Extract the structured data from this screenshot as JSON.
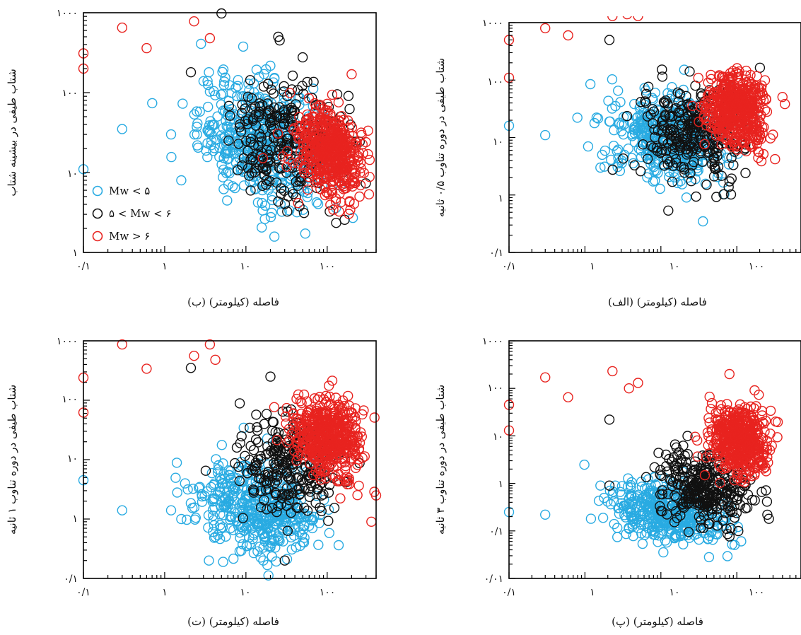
{
  "figure": {
    "legend": {
      "entries": [
        {
          "label": "Mw < ۵",
          "color": "#29abe2"
        },
        {
          "label": "۵ < Mw < ۶",
          "color": "#111111"
        },
        {
          "label": "Mw > ۶",
          "color": "#e8231f"
        }
      ]
    }
  },
  "chart_data": [
    {
      "type": "scatter",
      "id": "b",
      "caption": "(ب) فاصله (کیلومتر)",
      "ylabel": "شتاب طیفی در بیشینه شتاب",
      "xscale": "log",
      "yscale": "log",
      "xlim": [
        0.1,
        400
      ],
      "ylim": [
        1,
        1000
      ],
      "xticks": [
        "۰/۱",
        "۱",
        "۱۰",
        "۱۰۰"
      ],
      "yticks": [
        "۱",
        "۱۰",
        "۱۰۰",
        "۱۰۰۰"
      ],
      "legend_placement": "bottom-left",
      "series": [
        {
          "name": "Mw < ۵",
          "color": "#29abe2",
          "dist_center": 15,
          "dist_spread": 1.0,
          "val_center": 25,
          "val_spread": 0.9,
          "count": 450,
          "points": [
            [
              0.1,
              11
            ],
            [
              0.3,
              35
            ],
            [
              1.6,
              8
            ],
            [
              1.2,
              30
            ],
            [
              30,
              20
            ],
            [
              2.5,
              30
            ],
            [
              3.5,
              180
            ]
          ]
        },
        {
          "name": "۵ < Mw < ۶",
          "color": "#111111",
          "dist_center": 30,
          "dist_spread": 0.9,
          "val_center": 25,
          "val_spread": 0.9,
          "count": 240,
          "points": [
            [
              5,
              980
            ],
            [
              2.1,
              180
            ],
            [
              25,
              500
            ],
            [
              26,
              450
            ]
          ]
        },
        {
          "name": "Mw > ۶",
          "color": "#e8231f",
          "dist_center": 110,
          "dist_spread": 0.55,
          "val_center": 18,
          "val_spread": 0.65,
          "count": 500,
          "points": [
            [
              0.1,
              310
            ],
            [
              0.1,
              200
            ],
            [
              0.3,
              650
            ],
            [
              0.6,
              360
            ],
            [
              2.3,
              780
            ],
            [
              3.6,
              480
            ],
            [
              250,
              5
            ],
            [
              200,
              170
            ]
          ]
        }
      ]
    },
    {
      "type": "scatter",
      "id": "alef",
      "caption": "(الف) فاصله (کیلومتر)",
      "ylabel": "شتاب طیفی در دوره تناوب ۰/۵ ثانیه",
      "xscale": "log",
      "yscale": "log",
      "xlim": [
        0.1,
        700
      ],
      "ylim": [
        0.1,
        1000
      ],
      "xticks": [
        "۰/۱",
        "۱",
        "۱۰",
        "۱۰۰"
      ],
      "yticks": [
        "۰/۱",
        "۱",
        "۱۰",
        "۱۰۰",
        "۱۰۰۰"
      ],
      "series": [
        {
          "name": "Mw < ۵",
          "color": "#29abe2",
          "dist_center": 12,
          "dist_spread": 1.0,
          "val_center": 10,
          "val_spread": 0.9,
          "count": 400,
          "points": [
            [
              0.1,
              16
            ],
            [
              0.3,
              11
            ],
            [
              1.1,
              7
            ],
            [
              1.6,
              3
            ],
            [
              2.1,
              19
            ]
          ]
        },
        {
          "name": "۵ < Mw < ۶",
          "color": "#111111",
          "dist_center": 25,
          "dist_spread": 0.9,
          "val_center": 12,
          "val_spread": 1.0,
          "count": 260,
          "points": [
            [
              2.1,
              500
            ],
            [
              40,
              1.5
            ]
          ]
        },
        {
          "name": "Mw > ۶",
          "color": "#e8231f",
          "dist_center": 100,
          "dist_spread": 0.55,
          "val_center": 30,
          "val_spread": 0.75,
          "count": 520,
          "points": [
            [
              0.1,
              500
            ],
            [
              0.1,
              110
            ],
            [
              0.3,
              800
            ],
            [
              0.6,
              600
            ],
            [
              2.3,
              1300
            ],
            [
              3.6,
              1400
            ],
            [
              5,
              1300
            ]
          ]
        }
      ]
    },
    {
      "type": "scatter",
      "id": "te",
      "caption": "(ت) فاصله (کیلومتر)",
      "ylabel": "شتاب طیفی در دوره تناوب ۱ ثانیه",
      "xscale": "log",
      "yscale": "log",
      "xlim": [
        0.1,
        400
      ],
      "ylim": [
        0.1,
        1000
      ],
      "xticks": [
        "۰/۱",
        "۱",
        "۱۰",
        "۱۰۰"
      ],
      "yticks": [
        "۰/۱",
        "۱",
        "۱۰",
        "۱۰۰",
        "۱۰۰۰"
      ],
      "series": [
        {
          "name": "Mw < ۵",
          "color": "#29abe2",
          "dist_center": 15,
          "dist_spread": 1.0,
          "val_center": 1.5,
          "val_spread": 0.9,
          "count": 420,
          "points": [
            [
              0.1,
              4.5
            ],
            [
              0.3,
              1.4
            ],
            [
              1.2,
              1.4
            ],
            [
              1.6,
              1.0
            ],
            [
              3.5,
              0.2
            ],
            [
              4.2,
              0.5
            ]
          ]
        },
        {
          "name": "۵ < Mw < ۶",
          "color": "#111111",
          "dist_center": 35,
          "dist_spread": 0.8,
          "val_center": 8,
          "val_spread": 0.9,
          "count": 260,
          "points": [
            [
              2.1,
              350
            ],
            [
              20,
              250
            ],
            [
              30,
              0.2
            ]
          ]
        },
        {
          "name": "Mw > ۶",
          "color": "#e8231f",
          "dist_center": 100,
          "dist_spread": 0.55,
          "val_center": 25,
          "val_spread": 0.75,
          "count": 500,
          "points": [
            [
              0.1,
              240
            ],
            [
              0.1,
              62
            ],
            [
              0.3,
              870
            ],
            [
              0.6,
              340
            ],
            [
              2.3,
              560
            ],
            [
              3.6,
              870
            ],
            [
              4.2,
              480
            ],
            [
              350,
              0.9
            ],
            [
              400,
              2.5
            ]
          ]
        }
      ]
    },
    {
      "type": "scatter",
      "id": "pe",
      "caption": "(پ) فاصله (کیلومتر)",
      "ylabel": "شتاب طیفی در دوره تناوب ۳ ثانیه",
      "xscale": "log",
      "yscale": "log",
      "xlim": [
        0.1,
        700
      ],
      "ylim": [
        0.01,
        1000
      ],
      "xticks": [
        "۰/۱",
        "۱",
        "۱۰",
        "۱۰۰"
      ],
      "yticks": [
        "۰/۰۱",
        "۰/۱",
        "۱",
        "۱۰",
        "۱۰۰",
        "۱۰۰۰"
      ],
      "series": [
        {
          "name": "Mw < ۵",
          "color": "#29abe2",
          "dist_center": 12,
          "dist_spread": 1.0,
          "val_center": 0.25,
          "val_spread": 0.8,
          "count": 420,
          "points": [
            [
              0.1,
              0.25
            ],
            [
              0.3,
              0.22
            ],
            [
              1.2,
              0.18
            ],
            [
              1.6,
              0.9
            ],
            [
              2.5,
              0.9
            ]
          ]
        },
        {
          "name": "۵ < Mw < ۶",
          "color": "#111111",
          "dist_center": 35,
          "dist_spread": 0.8,
          "val_center": 0.8,
          "val_spread": 0.9,
          "count": 300,
          "points": [
            [
              2.1,
              22
            ],
            [
              2.1,
              0.9
            ]
          ]
        },
        {
          "name": "Mw > ۶",
          "color": "#e8231f",
          "dist_center": 110,
          "dist_spread": 0.5,
          "val_center": 8,
          "val_spread": 0.8,
          "count": 500,
          "points": [
            [
              0.1,
              45
            ],
            [
              0.1,
              13
            ],
            [
              0.3,
              170
            ],
            [
              0.6,
              65
            ],
            [
              2.3,
              230
            ],
            [
              3.8,
              100
            ],
            [
              5,
              130
            ],
            [
              80,
              200
            ]
          ]
        }
      ]
    }
  ]
}
